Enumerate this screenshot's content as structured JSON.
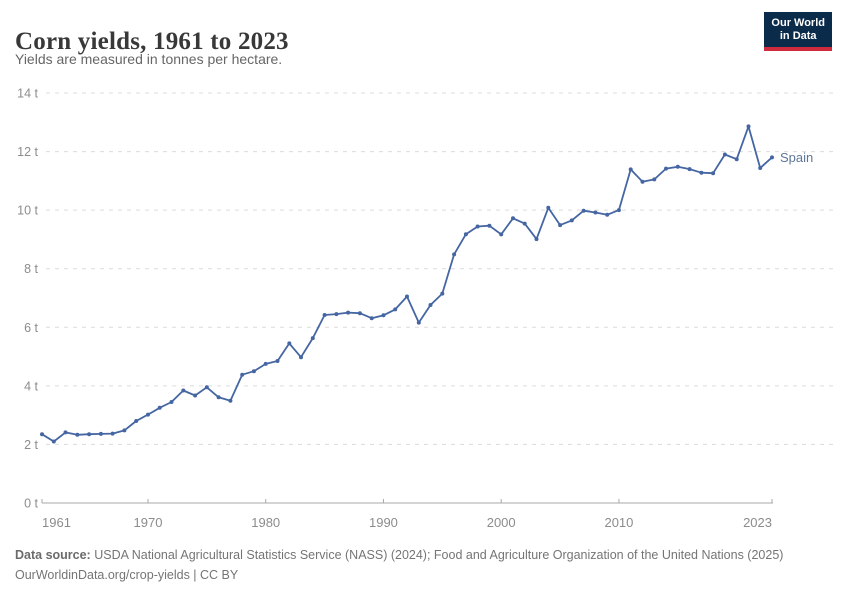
{
  "header": {
    "title": "Corn yields, 1961 to 2023",
    "subtitle": "Yields are measured in tonnes per hectare.",
    "logo": {
      "line1": "Our World",
      "line2": "in Data",
      "bg_color": "#0B2B4B",
      "accent_color": "#CE2B3E",
      "text_color": "#FFFFFF"
    }
  },
  "footer": {
    "source_label": "Data source:",
    "source_text": " USDA National Agricultural Statistics Service (NASS) (2024); Food and Agriculture Organization of the United Nations (2025)",
    "license_text": "OurWorldinData.org/crop-yields | CC BY"
  },
  "chart_data": {
    "type": "line",
    "title": "Corn yields, 1961 to 2023",
    "subtitle": "Yields are measured in tonnes per hectare.",
    "xlabel": "",
    "ylabel": "tonnes per hectare",
    "unit": " t",
    "xlim": [
      1961,
      2023
    ],
    "ylim": [
      0,
      14
    ],
    "x_ticks": [
      1961,
      1970,
      1980,
      1990,
      2000,
      2010,
      2023
    ],
    "y_ticks": [
      0,
      2,
      4,
      6,
      8,
      10,
      12,
      14
    ],
    "grid": "horizontal-dashed",
    "legend_position": "end-of-line-label",
    "grid_color": "#DCDCDC",
    "axis_color": "#A8A8A8",
    "tick_label_color": "#8C8C8C",
    "series": [
      {
        "name": "Spain",
        "color": "#4566A3",
        "label_color": "#5E7697",
        "x": [
          1961,
          1962,
          1963,
          1964,
          1965,
          1966,
          1967,
          1968,
          1969,
          1970,
          1971,
          1972,
          1973,
          1974,
          1975,
          1976,
          1977,
          1978,
          1979,
          1980,
          1981,
          1982,
          1983,
          1984,
          1985,
          1986,
          1987,
          1988,
          1989,
          1990,
          1991,
          1992,
          1993,
          1994,
          1995,
          1996,
          1997,
          1998,
          1999,
          2000,
          2001,
          2002,
          2003,
          2004,
          2005,
          2006,
          2007,
          2008,
          2009,
          2010,
          2011,
          2012,
          2013,
          2014,
          2015,
          2016,
          2017,
          2018,
          2019,
          2020,
          2021,
          2022,
          2023
        ],
        "values": [
          2.35,
          2.1,
          2.41,
          2.33,
          2.35,
          2.36,
          2.37,
          2.48,
          2.8,
          3.02,
          3.25,
          3.45,
          3.84,
          3.67,
          3.95,
          3.61,
          3.49,
          4.38,
          4.5,
          4.75,
          4.85,
          5.45,
          4.98,
          5.63,
          6.42,
          6.45,
          6.5,
          6.48,
          6.31,
          6.41,
          6.61,
          7.05,
          6.16,
          6.76,
          7.15,
          8.49,
          9.18,
          9.44,
          9.47,
          9.17,
          9.72,
          9.54,
          9.01,
          10.08,
          9.49,
          9.65,
          9.98,
          9.92,
          9.84,
          10.0,
          11.39,
          10.97,
          11.05,
          11.42,
          11.48,
          11.4,
          11.28,
          11.26,
          11.9,
          11.74,
          12.86,
          11.44,
          11.8
        ]
      }
    ]
  }
}
